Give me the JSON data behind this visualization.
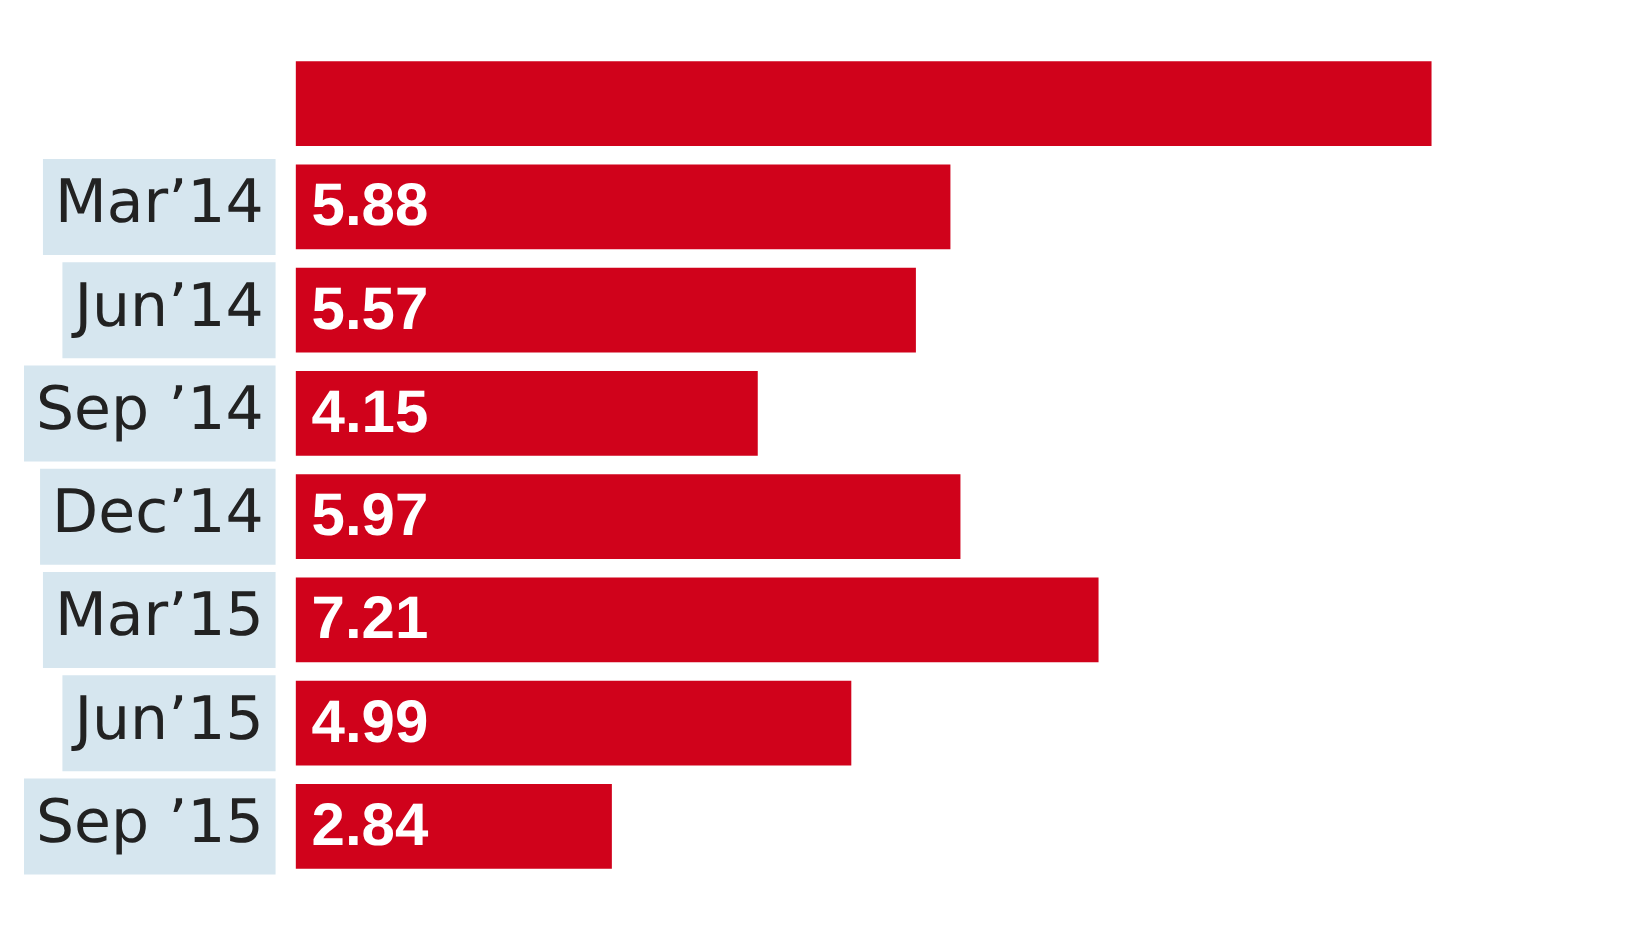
{
  "chart_data": {
    "type": "bar",
    "orientation": "horizontal",
    "categories": [
      null,
      "Mar’14",
      "Jun’14",
      "Sep ’14",
      "Dec’14",
      "Mar’15",
      "Jun’15",
      "Sep ’15"
    ],
    "values": [
      10.2,
      5.88,
      5.57,
      4.15,
      5.97,
      7.21,
      4.99,
      2.84
    ],
    "value_labels": [
      null,
      "5.88",
      "5.57",
      "4.15",
      "5.97",
      "7.21",
      "4.99",
      "2.84"
    ],
    "color": "#d0021b",
    "grid": false,
    "legend": false,
    "tick_labels": "y"
  }
}
